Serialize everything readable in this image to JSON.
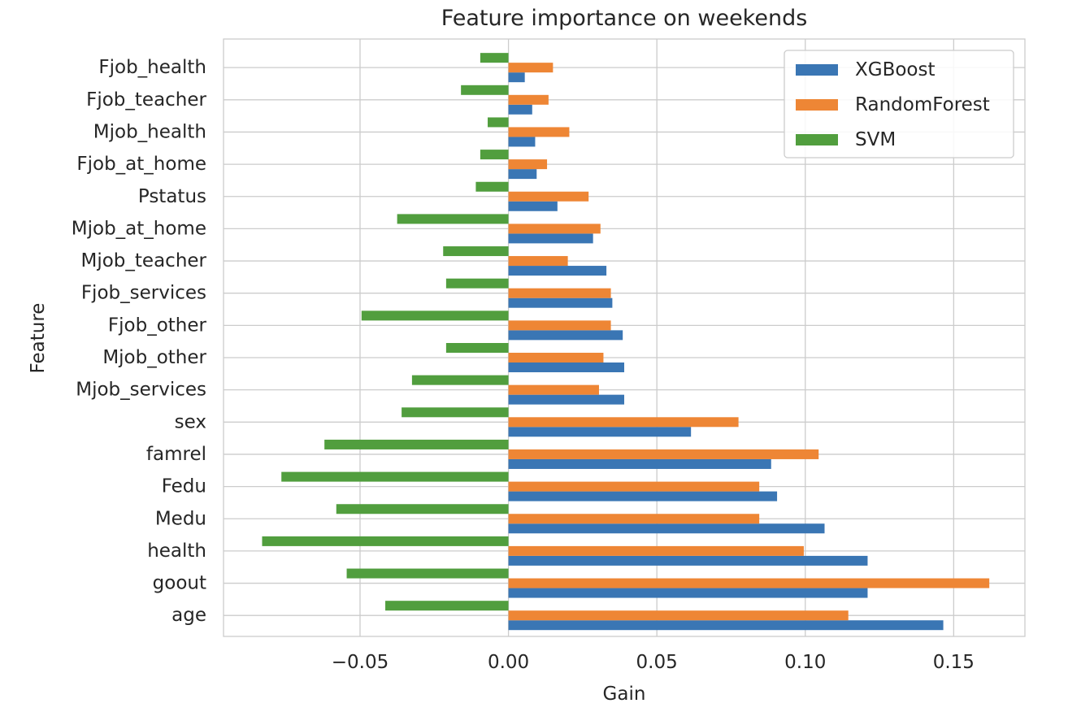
{
  "chart_data": {
    "type": "bar",
    "orientation": "horizontal",
    "title": "Feature importance on weekends",
    "xlabel": "Gain",
    "ylabel": "Feature",
    "xlim": [
      -0.096,
      0.174
    ],
    "x_ticks": [
      -0.05,
      0.0,
      0.05,
      0.1,
      0.15
    ],
    "x_tick_labels": [
      "−0.05",
      "0.00",
      "0.05",
      "0.10",
      "0.15"
    ],
    "grid": true,
    "legend_position": "top-right",
    "categories": [
      "age",
      "goout",
      "health",
      "Medu",
      "Fedu",
      "famrel",
      "sex",
      "Mjob_services",
      "Mjob_other",
      "Fjob_other",
      "Fjob_services",
      "Mjob_teacher",
      "Mjob_at_home",
      "Pstatus",
      "Fjob_at_home",
      "Mjob_health",
      "Fjob_teacher",
      "Fjob_health"
    ],
    "series": [
      {
        "name": "XGBoost",
        "color": "#3a76b4",
        "values": [
          0.1465,
          0.121,
          0.121,
          0.1065,
          0.0905,
          0.0885,
          0.0615,
          0.039,
          0.039,
          0.0385,
          0.035,
          0.033,
          0.0285,
          0.0165,
          0.0095,
          0.009,
          0.008,
          0.0055
        ]
      },
      {
        "name": "RandomForest",
        "color": "#ee8635",
        "values": [
          0.1145,
          0.162,
          0.0995,
          0.0845,
          0.0845,
          0.1045,
          0.0775,
          0.0305,
          0.032,
          0.0345,
          0.0345,
          0.02,
          0.031,
          0.027,
          0.013,
          0.0205,
          0.0135,
          0.015
        ]
      },
      {
        "name": "SVM",
        "color": "#519e3e",
        "values": [
          -0.0415,
          -0.0545,
          -0.083,
          -0.058,
          -0.0765,
          -0.062,
          -0.036,
          -0.0325,
          -0.021,
          -0.0495,
          -0.021,
          -0.022,
          -0.0375,
          -0.011,
          -0.0095,
          -0.007,
          -0.016,
          -0.0095
        ]
      }
    ]
  }
}
